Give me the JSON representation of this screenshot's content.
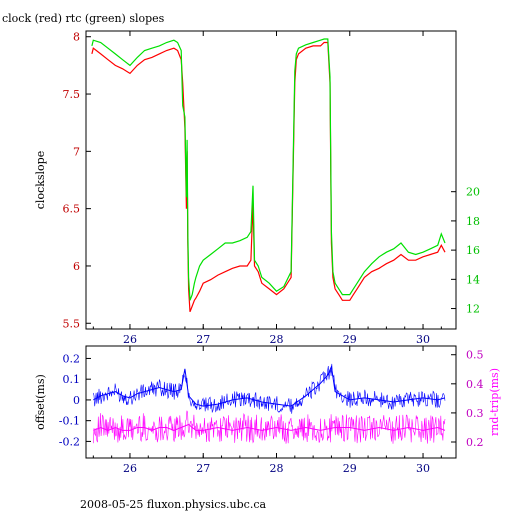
{
  "page": {
    "title": "clock (red) rtc (green) slopes",
    "footer": "2008-05-25 fluxon.physics.ubc.ca"
  },
  "colors": {
    "clock": "#ff0000",
    "rtc": "#00e000",
    "offset": "#0000ff",
    "rndtrip": "#ff00ff",
    "axis": "#000000"
  },
  "chart_data": [
    {
      "type": "line",
      "title": "clock (red) rtc (green) slopes",
      "ylabel": "clockslope",
      "y2label": "",
      "xlim": [
        25.4,
        30.45
      ],
      "ylim": [
        5.45,
        8.05
      ],
      "y2lim": [
        10.6,
        31.0
      ],
      "x_ticks": [
        26,
        27,
        28,
        29,
        30
      ],
      "y_ticks": [
        "5.5",
        "6",
        "6.5",
        "7",
        "7.5",
        "8"
      ],
      "y2_ticks": [
        "12",
        "14",
        "16",
        "18",
        "20"
      ],
      "series": [
        {
          "name": "clock",
          "axis": "left",
          "x": [
            25.48,
            25.5,
            25.6,
            25.7,
            25.8,
            25.9,
            26.0,
            26.1,
            26.2,
            26.3,
            26.4,
            26.5,
            26.6,
            26.65,
            26.7,
            26.72,
            26.75,
            26.77,
            26.78,
            26.79,
            26.8,
            26.82,
            26.85,
            26.88,
            26.9,
            26.95,
            27.0,
            27.1,
            27.2,
            27.3,
            27.4,
            27.5,
            27.6,
            27.65,
            27.68,
            27.7,
            27.75,
            27.8,
            27.9,
            28.0,
            28.1,
            28.2,
            28.25,
            28.27,
            28.3,
            28.4,
            28.5,
            28.6,
            28.65,
            28.7,
            28.73,
            28.75,
            28.77,
            28.8,
            28.85,
            28.9,
            29.0,
            29.05,
            29.1,
            29.2,
            29.3,
            29.4,
            29.5,
            29.6,
            29.7,
            29.8,
            29.9,
            30.0,
            30.1,
            30.2,
            30.25,
            30.3
          ],
          "y": [
            7.85,
            7.9,
            7.85,
            7.8,
            7.75,
            7.72,
            7.68,
            7.75,
            7.8,
            7.82,
            7.85,
            7.88,
            7.9,
            7.88,
            7.8,
            7.6,
            7.2,
            6.5,
            7.0,
            6.2,
            5.8,
            5.6,
            5.65,
            5.7,
            5.72,
            5.78,
            5.85,
            5.88,
            5.92,
            5.95,
            5.98,
            6.0,
            6.0,
            6.05,
            6.55,
            6.0,
            5.95,
            5.85,
            5.8,
            5.75,
            5.8,
            5.9,
            7.6,
            7.8,
            7.85,
            7.9,
            7.92,
            7.92,
            7.95,
            7.95,
            7.6,
            6.2,
            5.9,
            5.8,
            5.75,
            5.7,
            5.7,
            5.75,
            5.8,
            5.9,
            5.95,
            5.98,
            6.02,
            6.05,
            6.1,
            6.05,
            6.05,
            6.08,
            6.1,
            6.12,
            6.18,
            6.12
          ]
        },
        {
          "name": "rtc",
          "axis": "left",
          "x": [
            25.48,
            25.5,
            25.6,
            25.7,
            25.8,
            25.9,
            26.0,
            26.1,
            26.2,
            26.3,
            26.4,
            26.5,
            26.6,
            26.65,
            26.7,
            26.72,
            26.75,
            26.77,
            26.78,
            26.79,
            26.8,
            26.82,
            26.85,
            26.88,
            26.9,
            26.95,
            27.0,
            27.1,
            27.2,
            27.3,
            27.4,
            27.5,
            27.6,
            27.65,
            27.68,
            27.7,
            27.75,
            27.8,
            27.9,
            28.0,
            28.1,
            28.2,
            28.25,
            28.27,
            28.3,
            28.4,
            28.5,
            28.6,
            28.65,
            28.7,
            28.73,
            28.75,
            28.77,
            28.8,
            28.85,
            28.9,
            29.0,
            29.05,
            29.1,
            29.2,
            29.3,
            29.4,
            29.5,
            29.6,
            29.7,
            29.8,
            29.9,
            30.0,
            30.1,
            30.2,
            30.25,
            30.3
          ],
          "y": [
            7.92,
            7.97,
            7.95,
            7.9,
            7.85,
            7.8,
            7.75,
            7.82,
            7.88,
            7.9,
            7.92,
            7.95,
            7.97,
            7.95,
            7.88,
            7.4,
            7.3,
            6.6,
            7.1,
            6.3,
            5.9,
            5.7,
            5.75,
            5.85,
            5.9,
            6.0,
            6.05,
            6.1,
            6.15,
            6.2,
            6.2,
            6.22,
            6.25,
            6.3,
            6.7,
            6.05,
            6.0,
            5.9,
            5.85,
            5.78,
            5.82,
            5.95,
            7.7,
            7.85,
            7.9,
            7.93,
            7.95,
            7.97,
            7.98,
            7.98,
            7.65,
            6.3,
            5.95,
            5.85,
            5.8,
            5.75,
            5.75,
            5.8,
            5.85,
            5.95,
            6.02,
            6.08,
            6.12,
            6.15,
            6.2,
            6.12,
            6.1,
            6.12,
            6.15,
            6.18,
            6.28,
            6.2
          ]
        }
      ]
    },
    {
      "type": "line",
      "ylabel": "offset(ms)",
      "y2label": "rnd-trip(ms)",
      "xlim": [
        25.4,
        30.45
      ],
      "ylim": [
        -0.28,
        0.26
      ],
      "y2lim": [
        0.145,
        0.53
      ],
      "x_ticks": [
        26,
        27,
        28,
        29,
        30
      ],
      "y_ticks": [
        "-0.2",
        "-0.1",
        "0",
        "0.1",
        "0.2"
      ],
      "y2_ticks": [
        "0.2",
        "0.3",
        "0.4",
        "0.5"
      ],
      "series": [
        {
          "name": "offset",
          "axis": "left",
          "x": [
            25.5,
            25.6,
            25.7,
            25.8,
            25.9,
            26.0,
            26.1,
            26.2,
            26.3,
            26.4,
            26.5,
            26.6,
            26.7,
            26.75,
            26.8,
            26.9,
            27.0,
            27.2,
            27.4,
            27.6,
            27.8,
            28.0,
            28.2,
            28.4,
            28.5,
            28.6,
            28.7,
            28.75,
            28.8,
            29.0,
            29.2,
            29.4,
            29.6,
            29.8,
            30.0,
            30.2,
            30.3
          ],
          "y": [
            0.0,
            0.02,
            0.03,
            0.04,
            0.02,
            0.01,
            0.03,
            0.04,
            0.05,
            0.06,
            0.05,
            0.04,
            0.05,
            0.15,
            0.02,
            -0.02,
            -0.03,
            -0.02,
            0.0,
            0.01,
            -0.01,
            -0.02,
            -0.03,
            0.02,
            0.05,
            0.08,
            0.12,
            0.16,
            0.04,
            0.0,
            0.01,
            0.0,
            -0.01,
            0.0,
            0.01,
            0.0,
            0.01
          ]
        },
        {
          "name": "rnd-trip",
          "axis": "right",
          "x": [
            25.5,
            25.6,
            25.7,
            25.8,
            25.9,
            26.0,
            26.1,
            26.2,
            26.3,
            26.4,
            26.5,
            26.6,
            26.7,
            26.8,
            26.9,
            27.0,
            27.2,
            27.4,
            27.6,
            27.8,
            28.0,
            28.2,
            28.4,
            28.6,
            28.8,
            29.0,
            29.2,
            29.4,
            29.6,
            29.8,
            30.0,
            30.2,
            30.3
          ],
          "y": [
            0.24,
            0.25,
            0.24,
            0.25,
            0.24,
            0.24,
            0.25,
            0.25,
            0.24,
            0.25,
            0.25,
            0.24,
            0.25,
            0.26,
            0.24,
            0.24,
            0.25,
            0.24,
            0.25,
            0.24,
            0.25,
            0.24,
            0.25,
            0.24,
            0.25,
            0.25,
            0.24,
            0.25,
            0.24,
            0.25,
            0.24,
            0.25,
            0.24
          ]
        }
      ]
    }
  ]
}
